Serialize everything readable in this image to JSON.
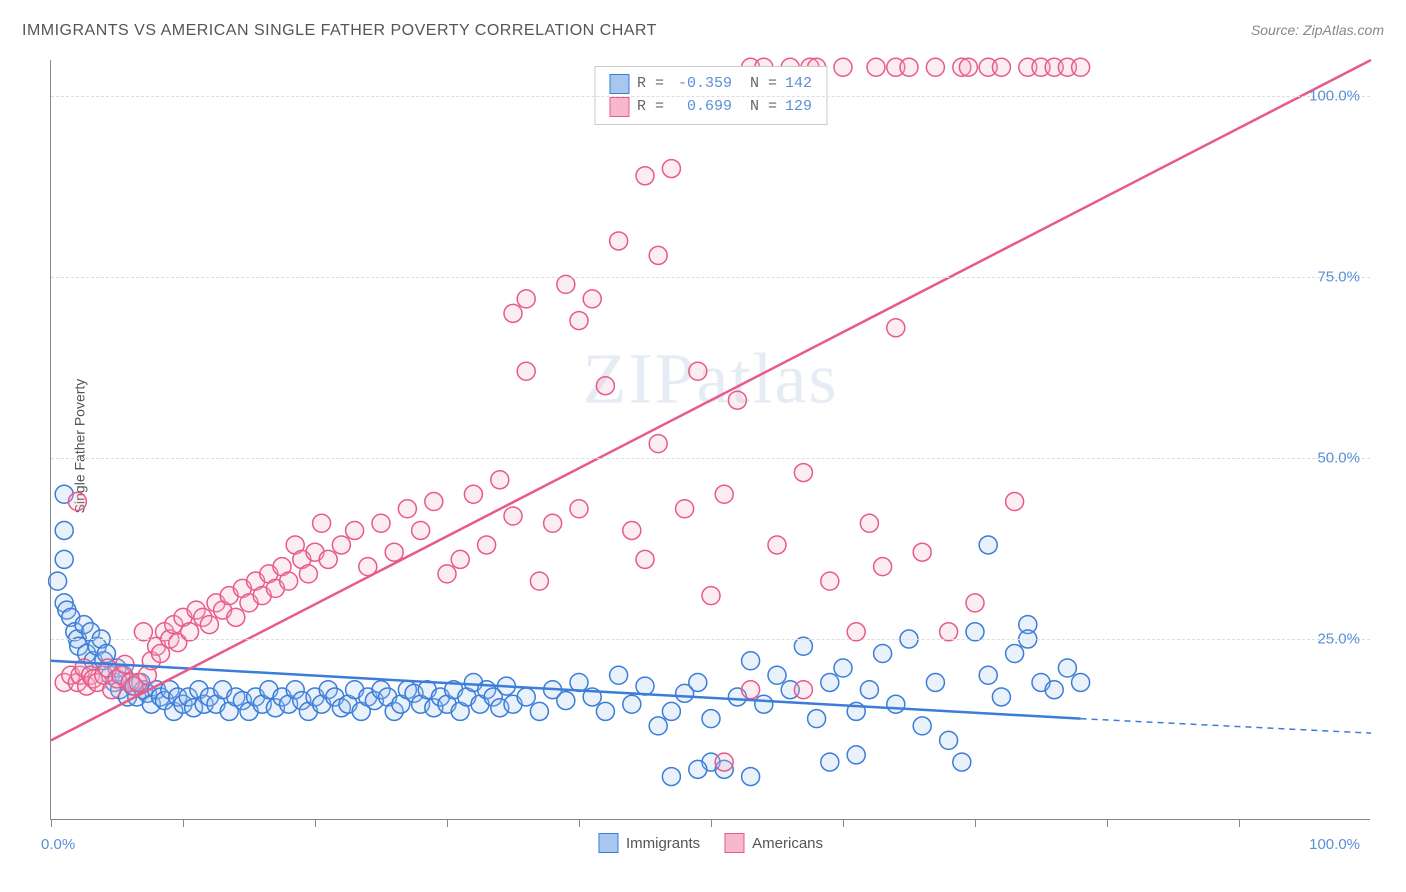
{
  "title": "IMMIGRANTS VS AMERICAN SINGLE FATHER POVERTY CORRELATION CHART",
  "source_label": "Source:",
  "source_name": "ZipAtlas.com",
  "watermark": "ZIPatlas",
  "ylabel": "Single Father Poverty",
  "chart": {
    "type": "scatter-with-regression",
    "xlim": [
      0,
      100
    ],
    "ylim": [
      0,
      105
    ],
    "xtick_positions": [
      0,
      10,
      20,
      30,
      40,
      50,
      60,
      70,
      80,
      90
    ],
    "x_axis_labels": {
      "left": "0.0%",
      "right": "100.0%"
    },
    "y_ticks": [
      {
        "v": 25,
        "label": "25.0%"
      },
      {
        "v": 50,
        "label": "50.0%"
      },
      {
        "v": 75,
        "label": "75.0%"
      },
      {
        "v": 100,
        "label": "100.0%"
      }
    ],
    "background_color": "#ffffff",
    "grid_color": "#dddddd",
    "axis_color": "#888888",
    "marker_radius": 9,
    "marker_stroke_width": 1.5,
    "marker_fill_opacity": 0.25,
    "line_width": 2.5,
    "series": [
      {
        "name": "Immigrants",
        "color_stroke": "#3b7dd8",
        "color_fill": "#a7c7ef",
        "R": "-0.359",
        "N": "142",
        "regression": {
          "x1": 0,
          "y1": 22,
          "x2": 78,
          "y2": 14,
          "x1d": 78,
          "y1d": 14,
          "x2d": 100,
          "y2d": 12
        },
        "points": [
          [
            1,
            36
          ],
          [
            1,
            40
          ],
          [
            1,
            45
          ],
          [
            1,
            30
          ],
          [
            0.5,
            33
          ],
          [
            1.2,
            29
          ],
          [
            1.5,
            28
          ],
          [
            1.8,
            26
          ],
          [
            2,
            25
          ],
          [
            2.1,
            24
          ],
          [
            2.5,
            27
          ],
          [
            2.7,
            23
          ],
          [
            3,
            26
          ],
          [
            3.2,
            22
          ],
          [
            3.5,
            24
          ],
          [
            3.8,
            25
          ],
          [
            4,
            22
          ],
          [
            4.2,
            23
          ],
          [
            4.5,
            20
          ],
          [
            4.8,
            19
          ],
          [
            5,
            21
          ],
          [
            5.2,
            18
          ],
          [
            5.5,
            20
          ],
          [
            5.8,
            17
          ],
          [
            6,
            19
          ],
          [
            6.2,
            18.5
          ],
          [
            6.5,
            17
          ],
          [
            6.8,
            19
          ],
          [
            7,
            18
          ],
          [
            7.3,
            17.5
          ],
          [
            7.6,
            16
          ],
          [
            8,
            18
          ],
          [
            8.3,
            17
          ],
          [
            8.6,
            16.5
          ],
          [
            9,
            18
          ],
          [
            9.3,
            15
          ],
          [
            9.6,
            17
          ],
          [
            10,
            16
          ],
          [
            10.4,
            17
          ],
          [
            10.8,
            15.5
          ],
          [
            11.2,
            18
          ],
          [
            11.6,
            16
          ],
          [
            12,
            17
          ],
          [
            12.5,
            16
          ],
          [
            13,
            18
          ],
          [
            13.5,
            15
          ],
          [
            14,
            17
          ],
          [
            14.5,
            16.5
          ],
          [
            15,
            15
          ],
          [
            15.5,
            17
          ],
          [
            16,
            16
          ],
          [
            16.5,
            18
          ],
          [
            17,
            15.5
          ],
          [
            17.5,
            17
          ],
          [
            18,
            16
          ],
          [
            18.5,
            18
          ],
          [
            19,
            16.5
          ],
          [
            19.5,
            15
          ],
          [
            20,
            17
          ],
          [
            20.5,
            16
          ],
          [
            21,
            18
          ],
          [
            21.5,
            17
          ],
          [
            22,
            15.5
          ],
          [
            22.5,
            16
          ],
          [
            23,
            18
          ],
          [
            23.5,
            15
          ],
          [
            24,
            17
          ],
          [
            24.5,
            16.5
          ],
          [
            25,
            18
          ],
          [
            25.5,
            17
          ],
          [
            26,
            15
          ],
          [
            26.5,
            16
          ],
          [
            27,
            18
          ],
          [
            27.5,
            17.5
          ],
          [
            28,
            16
          ],
          [
            28.5,
            18
          ],
          [
            29,
            15.5
          ],
          [
            29.5,
            17
          ],
          [
            30,
            16
          ],
          [
            30.5,
            18
          ],
          [
            31,
            15
          ],
          [
            31.5,
            17
          ],
          [
            32,
            19
          ],
          [
            32.5,
            16
          ],
          [
            33,
            18
          ],
          [
            33.5,
            17
          ],
          [
            34,
            15.5
          ],
          [
            34.5,
            18.5
          ],
          [
            35,
            16
          ],
          [
            36,
            17
          ],
          [
            37,
            15
          ],
          [
            38,
            18
          ],
          [
            39,
            16.5
          ],
          [
            40,
            19
          ],
          [
            41,
            17
          ],
          [
            42,
            15
          ],
          [
            43,
            20
          ],
          [
            44,
            16
          ],
          [
            45,
            18.5
          ],
          [
            46,
            13
          ],
          [
            47,
            15
          ],
          [
            48,
            17.5
          ],
          [
            49,
            19
          ],
          [
            50,
            14
          ],
          [
            50,
            8
          ],
          [
            51,
            7
          ],
          [
            52,
            17
          ],
          [
            53,
            22
          ],
          [
            54,
            16
          ],
          [
            55,
            20
          ],
          [
            56,
            18
          ],
          [
            57,
            24
          ],
          [
            58,
            14
          ],
          [
            59,
            19
          ],
          [
            60,
            21
          ],
          [
            61,
            15
          ],
          [
            62,
            18
          ],
          [
            63,
            23
          ],
          [
            64,
            16
          ],
          [
            65,
            25
          ],
          [
            66,
            13
          ],
          [
            67,
            19
          ],
          [
            68,
            11
          ],
          [
            69,
            8
          ],
          [
            70,
            26
          ],
          [
            71,
            20
          ],
          [
            72,
            17
          ],
          [
            73,
            23
          ],
          [
            74,
            27
          ],
          [
            75,
            19
          ],
          [
            76,
            18
          ],
          [
            77,
            21
          ],
          [
            78,
            19
          ],
          [
            71,
            38
          ],
          [
            74,
            25
          ],
          [
            47,
            6
          ],
          [
            49,
            7
          ],
          [
            53,
            6
          ],
          [
            59,
            8
          ],
          [
            61,
            9
          ]
        ]
      },
      {
        "name": "Americans",
        "color_stroke": "#e85a8a",
        "color_fill": "#f5b8cc",
        "R": "0.699",
        "N": "129",
        "regression": {
          "x1": 0,
          "y1": 11,
          "x2": 100,
          "y2": 105,
          "dashed": false
        },
        "points": [
          [
            1,
            19
          ],
          [
            1.5,
            20
          ],
          [
            2,
            19
          ],
          [
            2.2,
            20
          ],
          [
            2.5,
            21
          ],
          [
            2.7,
            18.5
          ],
          [
            3,
            20
          ],
          [
            3.2,
            19.5
          ],
          [
            3.5,
            19
          ],
          [
            4,
            20
          ],
          [
            4.3,
            21
          ],
          [
            4.6,
            18
          ],
          [
            5,
            19.5
          ],
          [
            5.3,
            20
          ],
          [
            5.6,
            21.5
          ],
          [
            6,
            19
          ],
          [
            6.3,
            18.5
          ],
          [
            6.6,
            19
          ],
          [
            7,
            26
          ],
          [
            7.3,
            20
          ],
          [
            7.6,
            22
          ],
          [
            8,
            24
          ],
          [
            8.3,
            23
          ],
          [
            8.6,
            26
          ],
          [
            9,
            25
          ],
          [
            9.3,
            27
          ],
          [
            9.6,
            24.5
          ],
          [
            10,
            28
          ],
          [
            10.5,
            26
          ],
          [
            11,
            29
          ],
          [
            11.5,
            28
          ],
          [
            12,
            27
          ],
          [
            12.5,
            30
          ],
          [
            13,
            29
          ],
          [
            13.5,
            31
          ],
          [
            14,
            28
          ],
          [
            14.5,
            32
          ],
          [
            15,
            30
          ],
          [
            15.5,
            33
          ],
          [
            16,
            31
          ],
          [
            16.5,
            34
          ],
          [
            17,
            32
          ],
          [
            17.5,
            35
          ],
          [
            18,
            33
          ],
          [
            18.5,
            38
          ],
          [
            19,
            36
          ],
          [
            19.5,
            34
          ],
          [
            20,
            37
          ],
          [
            20.5,
            41
          ],
          [
            21,
            36
          ],
          [
            22,
            38
          ],
          [
            23,
            40
          ],
          [
            24,
            35
          ],
          [
            25,
            41
          ],
          [
            26,
            37
          ],
          [
            27,
            43
          ],
          [
            28,
            40
          ],
          [
            29,
            44
          ],
          [
            30,
            34
          ],
          [
            31,
            36
          ],
          [
            32,
            45
          ],
          [
            33,
            38
          ],
          [
            34,
            47
          ],
          [
            35,
            42
          ],
          [
            36,
            62
          ],
          [
            37,
            33
          ],
          [
            38,
            41
          ],
          [
            39,
            74
          ],
          [
            40,
            69
          ],
          [
            40,
            43
          ],
          [
            41,
            72
          ],
          [
            42,
            60
          ],
          [
            43,
            80
          ],
          [
            44,
            40
          ],
          [
            45,
            89
          ],
          [
            45,
            36
          ],
          [
            46,
            52
          ],
          [
            46,
            78
          ],
          [
            47,
            90
          ],
          [
            48,
            43
          ],
          [
            49,
            62
          ],
          [
            50,
            31
          ],
          [
            51,
            45
          ],
          [
            52,
            58
          ],
          [
            53,
            18
          ],
          [
            53,
            104
          ],
          [
            54,
            104
          ],
          [
            55,
            38
          ],
          [
            56,
            104
          ],
          [
            57,
            48
          ],
          [
            57.5,
            104
          ],
          [
            58,
            104
          ],
          [
            59,
            33
          ],
          [
            60,
            104
          ],
          [
            61,
            26
          ],
          [
            62,
            41
          ],
          [
            62.5,
            104
          ],
          [
            63,
            35
          ],
          [
            64,
            104
          ],
          [
            65,
            104
          ],
          [
            66,
            37
          ],
          [
            67,
            104
          ],
          [
            68,
            26
          ],
          [
            69,
            104
          ],
          [
            69.5,
            104
          ],
          [
            70,
            30
          ],
          [
            71,
            104
          ],
          [
            72,
            104
          ],
          [
            73,
            44
          ],
          [
            74,
            104
          ],
          [
            75,
            104
          ],
          [
            76,
            104
          ],
          [
            77,
            104
          ],
          [
            78,
            104
          ],
          [
            51,
            8
          ],
          [
            57,
            18
          ],
          [
            64,
            68
          ],
          [
            2,
            44
          ],
          [
            35,
            70
          ],
          [
            36,
            72
          ]
        ]
      }
    ]
  },
  "legend_stats": {
    "rows": [
      {
        "swatch_fill": "#a7c7ef",
        "swatch_stroke": "#3b7dd8",
        "r_label": "R =",
        "r_val": "-0.359",
        "n_label": "N =",
        "n_val": "142"
      },
      {
        "swatch_fill": "#f5b8cc",
        "swatch_stroke": "#e85a8a",
        "r_label": "R =",
        "r_val": "0.699",
        "n_label": "N =",
        "n_val": "129"
      }
    ]
  },
  "bottom_legend": [
    {
      "swatch_fill": "#a7c7ef",
      "swatch_stroke": "#3b7dd8",
      "label": "Immigrants"
    },
    {
      "swatch_fill": "#f5b8cc",
      "swatch_stroke": "#e85a8a",
      "label": "Americans"
    }
  ]
}
